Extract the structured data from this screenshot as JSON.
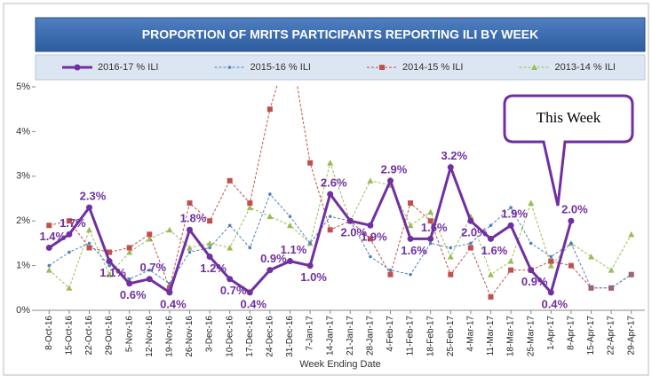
{
  "chart_data": {
    "type": "line",
    "title": "PROPORTION OF MRITS PARTICIPANTS REPORTING ILI BY WEEK",
    "x_label": "Week Ending Date",
    "annotation": "This Week",
    "categories": [
      "8-Oct-16",
      "15-Oct-16",
      "22-Oct-16",
      "29-Oct-16",
      "5-Nov-16",
      "12-Nov-16",
      "19-Nov-16",
      "26-Nov-16",
      "3-Dec-16",
      "10-Dec-16",
      "17-Dec-16",
      "24-Dec-16",
      "31-Dec-16",
      "7-Jan-17",
      "14-Jan-17",
      "21-Jan-17",
      "28-Jan-17",
      "4-Feb-17",
      "11-Feb-17",
      "18-Feb-17",
      "25-Feb-17",
      "4-Mar-17",
      "11-Mar-17",
      "18-Mar-17",
      "25-Mar-17",
      "1-Apr-17",
      "8-Apr-17",
      "15-Apr-17",
      "22-Apr-17",
      "29-Apr-17"
    ],
    "ylim": [
      0,
      5
    ],
    "yticks": [
      {
        "value": 0,
        "label": "0%"
      },
      {
        "value": 1,
        "label": "1%"
      },
      {
        "value": 2,
        "label": "2%"
      },
      {
        "value": 3,
        "label": "3%"
      },
      {
        "value": 4,
        "label": "4%"
      },
      {
        "value": 5,
        "label": "5%"
      }
    ],
    "series": [
      {
        "name": "2016-17 % ILI",
        "color": "#7030a0",
        "marker": "circle",
        "width": 3,
        "values": [
          1.4,
          1.7,
          2.3,
          1.1,
          0.6,
          0.7,
          0.4,
          1.8,
          1.2,
          0.7,
          0.4,
          0.9,
          1.1,
          1.0,
          2.6,
          2.0,
          1.9,
          2.9,
          1.6,
          1.6,
          3.2,
          2.0,
          1.6,
          1.9,
          0.9,
          0.4,
          2.0,
          null,
          null,
          null
        ],
        "value_labels": [
          "1.4%",
          "1.7%",
          "2.3%",
          "1.1%",
          "0.6%",
          "0.7%",
          "0.4%",
          "1.8%",
          "1.2%",
          "0.7%",
          "0.4%",
          "0.9%",
          "1.1%",
          "1.0%",
          "2.6%",
          "2.0%",
          "1.9%",
          "2.9%",
          "1.6%",
          "1.6%",
          "3.2%",
          "2.0%",
          "1.6%",
          "1.9%",
          "0.9%",
          "0.4%",
          "2.0%",
          null,
          null,
          null
        ]
      },
      {
        "name": "2015-16 % ILI",
        "color": "#4f81bd",
        "marker": "dot",
        "width": 1,
        "values": [
          1.0,
          1.3,
          1.5,
          1.0,
          0.7,
          0.9,
          0.6,
          1.3,
          1.4,
          1.9,
          1.4,
          2.6,
          2.1,
          1.5,
          2.1,
          2.0,
          1.2,
          0.9,
          0.8,
          1.5,
          1.4,
          1.5,
          1.9,
          2.3,
          1.5,
          1.2,
          1.5,
          0.5,
          0.5,
          0.8
        ]
      },
      {
        "name": "2014-15 % ILI",
        "color": "#c0504d",
        "marker": "square",
        "width": 1,
        "values": [
          1.9,
          2.0,
          1.4,
          1.3,
          1.4,
          1.7,
          0.5,
          2.4,
          2.0,
          2.9,
          2.4,
          4.5,
          6.0,
          3.3,
          1.8,
          2.0,
          1.6,
          0.8,
          2.4,
          2.0,
          0.8,
          1.4,
          0.3,
          0.9,
          0.9,
          1.1,
          1.0,
          0.5,
          0.5,
          0.8
        ]
      },
      {
        "name": "2013-14 % ILI",
        "color": "#9bbb59",
        "marker": "triangle",
        "width": 1,
        "values": [
          0.9,
          0.5,
          1.8,
          0.8,
          1.3,
          1.6,
          1.8,
          1.4,
          1.5,
          1.4,
          2.3,
          2.1,
          1.9,
          1.5,
          3.3,
          2.0,
          2.9,
          2.8,
          1.9,
          2.2,
          1.2,
          2.1,
          0.8,
          1.1,
          2.4,
          1.0,
          1.5,
          1.2,
          0.9,
          1.7
        ]
      }
    ]
  }
}
